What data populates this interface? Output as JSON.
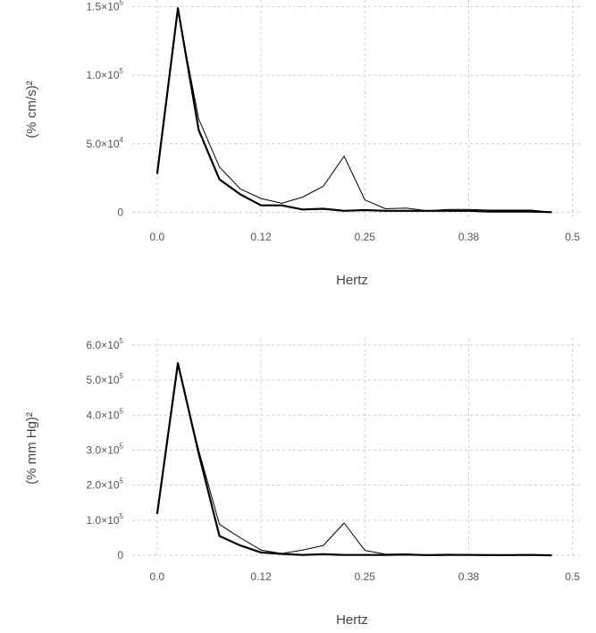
{
  "chart_data": [
    {
      "type": "line",
      "xlabel": "Hertz",
      "ylabel": "(% cm/s)²",
      "xlim": [
        -0.03,
        0.51
      ],
      "ylim": [
        -5000,
        155000
      ],
      "xticks": [
        0.0,
        0.125,
        0.25,
        0.375,
        0.5
      ],
      "xtick_labels": [
        "0.0",
        "0.12",
        "0.25",
        "0.38",
        "0.5"
      ],
      "yticks": [
        0,
        50000,
        100000,
        150000
      ],
      "ytick_labels": [
        {
          "base": "0",
          "exp": ""
        },
        {
          "base": "5.0×10",
          "exp": "4"
        },
        {
          "base": "1.0×10",
          "exp": "5"
        },
        {
          "base": "1.5×10",
          "exp": "5"
        }
      ],
      "grid": true,
      "x": [
        0.0,
        0.025,
        0.05,
        0.075,
        0.1,
        0.125,
        0.15,
        0.175,
        0.2,
        0.225,
        0.25,
        0.275,
        0.3,
        0.325,
        0.35,
        0.375,
        0.4,
        0.425,
        0.45,
        0.475
      ],
      "series": [
        {
          "style": "thick",
          "values": [
            28000,
            149000,
            60000,
            24000,
            13000,
            5000,
            5000,
            2000,
            2500,
            1000,
            1500,
            1000,
            1000,
            1000,
            1000,
            1000,
            500,
            500,
            500,
            0
          ]
        },
        {
          "style": "thin",
          "values": [
            28000,
            147000,
            68000,
            33000,
            17000,
            10000,
            6500,
            11000,
            19000,
            41000,
            9000,
            2500,
            3000,
            1000,
            2000,
            2000,
            1500,
            1500,
            1500,
            0
          ]
        }
      ]
    },
    {
      "type": "line",
      "xlabel": "Hertz",
      "ylabel": "(% mm Hg)²",
      "xlim": [
        -0.03,
        0.51
      ],
      "ylim": [
        -10000,
        620000
      ],
      "xticks": [
        0.0,
        0.125,
        0.25,
        0.375,
        0.5
      ],
      "xtick_labels": [
        "0.0",
        "0.12",
        "0.25",
        "0.38",
        "0.5"
      ],
      "yticks": [
        0,
        100000,
        200000,
        300000,
        400000,
        500000,
        600000
      ],
      "ytick_labels": [
        {
          "base": "0",
          "exp": ""
        },
        {
          "base": "1.0×10",
          "exp": "5"
        },
        {
          "base": "2.0×10",
          "exp": "5"
        },
        {
          "base": "3.0×10",
          "exp": "5"
        },
        {
          "base": "4.0×10",
          "exp": "5"
        },
        {
          "base": "5.0×10",
          "exp": "5"
        },
        {
          "base": "6.0×10",
          "exp": "5"
        }
      ],
      "grid": true,
      "x": [
        0.0,
        0.025,
        0.05,
        0.075,
        0.1,
        0.125,
        0.15,
        0.175,
        0.2,
        0.225,
        0.25,
        0.275,
        0.3,
        0.325,
        0.35,
        0.375,
        0.4,
        0.425,
        0.45,
        0.475
      ],
      "series": [
        {
          "style": "thick",
          "values": [
            118000,
            548000,
            290000,
            55000,
            28000,
            8000,
            4000,
            1000,
            3000,
            1000,
            1000,
            1000,
            2000,
            500,
            1000,
            1000,
            500,
            500,
            1000,
            0
          ]
        },
        {
          "style": "thin",
          "values": [
            118000,
            540000,
            300000,
            88000,
            50000,
            15000,
            5000,
            15000,
            28000,
            92000,
            14000,
            3000,
            4000,
            1000,
            3000,
            2000,
            1500,
            1500,
            2000,
            0
          ]
        }
      ]
    }
  ]
}
